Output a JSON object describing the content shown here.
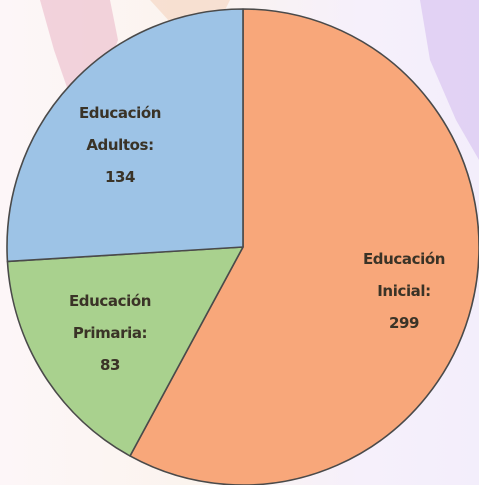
{
  "chart_data": {
    "type": "pie",
    "title": "",
    "slices": [
      {
        "lines": [
          "Educación",
          "Inicial:",
          "299"
        ],
        "value": 299,
        "color": "#f8a77a"
      },
      {
        "lines": [
          "Educación",
          "Primaria:",
          "83"
        ],
        "value": 83,
        "color": "#a9d18e"
      },
      {
        "lines": [
          "Educación",
          "Adultos:",
          "134"
        ],
        "value": 134,
        "color": "#9dc3e6"
      }
    ],
    "start_angle_deg": 0,
    "direction": "clockwise",
    "legend": "none"
  },
  "colors": {
    "outline": "#4a4a4a",
    "label_text": "#3a3327",
    "watermark_pink": "#e0a0b4",
    "watermark_purple": "#c9a8e8"
  }
}
